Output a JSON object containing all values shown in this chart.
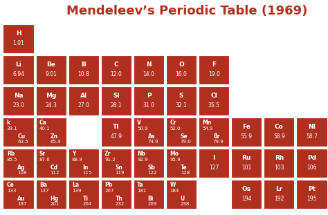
{
  "title": "Mendeleev’s Periodic Table (1969)",
  "title_color": "#b03020",
  "bg_color": "#ffffff",
  "cell_color": "#b03020",
  "text_color": "#ffffff",
  "cells": [
    {
      "row": 0,
      "col": 0,
      "lines": [
        "H",
        "1.01"
      ]
    },
    {
      "row": 1,
      "col": 0,
      "lines": [
        "Li",
        "6.94"
      ]
    },
    {
      "row": 1,
      "col": 1,
      "lines": [
        "Be",
        "9.01"
      ]
    },
    {
      "row": 1,
      "col": 2,
      "lines": [
        "B",
        "10.8"
      ]
    },
    {
      "row": 1,
      "col": 3,
      "lines": [
        "C",
        "12.0"
      ]
    },
    {
      "row": 1,
      "col": 4,
      "lines": [
        "N",
        "14.0"
      ]
    },
    {
      "row": 1,
      "col": 5,
      "lines": [
        "O",
        "16.0"
      ]
    },
    {
      "row": 1,
      "col": 6,
      "lines": [
        "F",
        "19.0"
      ]
    },
    {
      "row": 2,
      "col": 0,
      "lines": [
        "Na",
        "23.0"
      ]
    },
    {
      "row": 2,
      "col": 1,
      "lines": [
        "Mg",
        "24.3"
      ]
    },
    {
      "row": 2,
      "col": 2,
      "lines": [
        "Al",
        "27.0"
      ]
    },
    {
      "row": 2,
      "col": 3,
      "lines": [
        "SI",
        "28.1"
      ]
    },
    {
      "row": 2,
      "col": 4,
      "lines": [
        "P",
        "31.0"
      ]
    },
    {
      "row": 2,
      "col": 5,
      "lines": [
        "S",
        "32.1"
      ]
    },
    {
      "row": 2,
      "col": 6,
      "lines": [
        "Cl",
        "35.5"
      ]
    },
    {
      "row": 3,
      "col": 0,
      "lines": [
        "k",
        "39.1",
        "Cu",
        "63.5"
      ]
    },
    {
      "row": 3,
      "col": 1,
      "lines": [
        "Ca",
        "40.1",
        "Zn",
        "65.4"
      ]
    },
    {
      "row": 3,
      "col": 3,
      "lines": [
        "Tl",
        "47.9"
      ]
    },
    {
      "row": 3,
      "col": 4,
      "lines": [
        "V",
        "50.9",
        "As",
        "74.9"
      ]
    },
    {
      "row": 3,
      "col": 5,
      "lines": [
        "Cr",
        "52.0",
        "Se",
        "79.0"
      ]
    },
    {
      "row": 3,
      "col": 6,
      "lines": [
        "Mn",
        "54.9",
        "Br",
        "79.9"
      ]
    },
    {
      "row": 3,
      "col": 7,
      "lines": [
        "Fe",
        "55.9"
      ]
    },
    {
      "row": 3,
      "col": 8,
      "lines": [
        "Co",
        "58.9"
      ]
    },
    {
      "row": 3,
      "col": 9,
      "lines": [
        "NI",
        "58.7"
      ]
    },
    {
      "row": 4,
      "col": 0,
      "lines": [
        "Rb",
        "85.5",
        "Ag",
        "108"
      ]
    },
    {
      "row": 4,
      "col": 1,
      "lines": [
        "Sr",
        "87.6",
        "Cd",
        "112"
      ]
    },
    {
      "row": 4,
      "col": 2,
      "lines": [
        "Y",
        "88.9",
        "In",
        "115"
      ]
    },
    {
      "row": 4,
      "col": 3,
      "lines": [
        "Zr",
        "91.2",
        "Sn",
        "119"
      ]
    },
    {
      "row": 4,
      "col": 4,
      "lines": [
        "Nb",
        "92.9",
        "Sb",
        "122"
      ]
    },
    {
      "row": 4,
      "col": 5,
      "lines": [
        "Mo",
        "95.9",
        "Te",
        "128"
      ]
    },
    {
      "row": 4,
      "col": 6,
      "lines": [
        "I",
        "127"
      ]
    },
    {
      "row": 4,
      "col": 7,
      "lines": [
        "Ru",
        "101"
      ]
    },
    {
      "row": 4,
      "col": 8,
      "lines": [
        "Rh",
        "103"
      ]
    },
    {
      "row": 4,
      "col": 9,
      "lines": [
        "Pd",
        "106"
      ]
    },
    {
      "row": 5,
      "col": 0,
      "lines": [
        "Ce",
        "133",
        "Au",
        "197"
      ]
    },
    {
      "row": 5,
      "col": 1,
      "lines": [
        "Ba",
        "137",
        "Hg",
        "201"
      ]
    },
    {
      "row": 5,
      "col": 2,
      "lines": [
        "La",
        "139",
        "Ti",
        "204"
      ]
    },
    {
      "row": 5,
      "col": 3,
      "lines": [
        "Pb",
        "207",
        "Th",
        "232"
      ]
    },
    {
      "row": 5,
      "col": 4,
      "lines": [
        "Ta",
        "181",
        "Bi",
        "209"
      ]
    },
    {
      "row": 5,
      "col": 5,
      "lines": [
        "W",
        "184",
        "U",
        "238"
      ]
    },
    {
      "row": 5,
      "col": 7,
      "lines": [
        "Os",
        "194"
      ]
    },
    {
      "row": 5,
      "col": 8,
      "lines": [
        "Lr",
        "192"
      ]
    },
    {
      "row": 5,
      "col": 9,
      "lines": [
        "Pt",
        "195"
      ]
    }
  ],
  "num_rows": 6,
  "num_cols": 10,
  "title_fontsize": 13,
  "sym_fontsize": 6.5,
  "val_fontsize": 5.5,
  "sym2_fontsize": 5.5,
  "val2_fontsize": 5.0
}
